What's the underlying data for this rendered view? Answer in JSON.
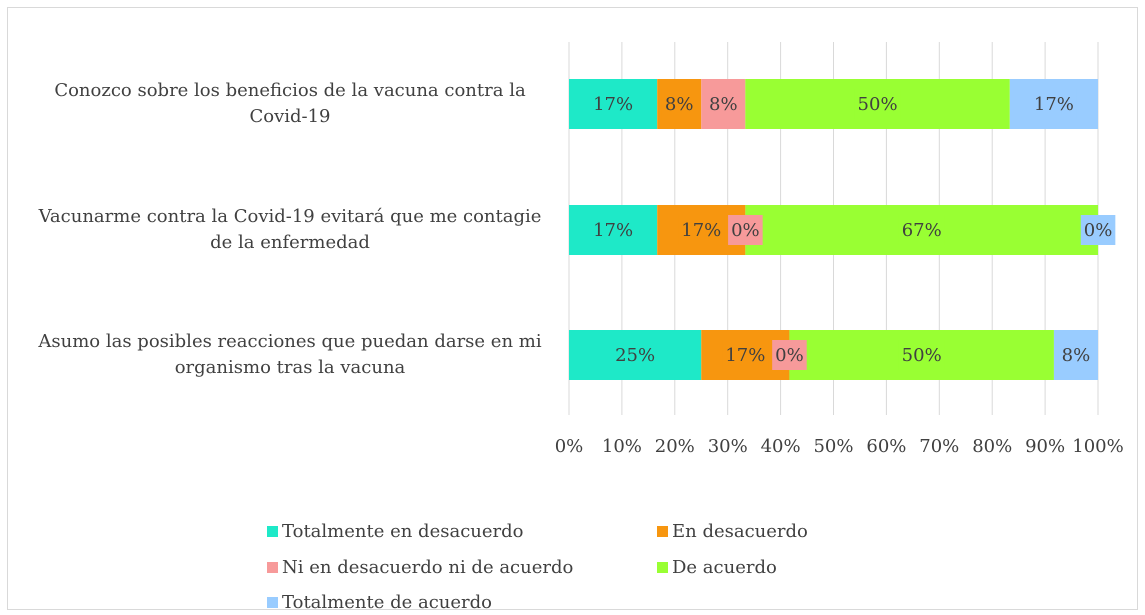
{
  "chart_data": {
    "type": "stacked-bar-horizontal",
    "categories": [
      "Conozco sobre los beneficios de la vacuna contra la Covid-19",
      "Vacunarme contra la Covid-19 evitará que me contagie de la enfermedad",
      "Asumo las posibles reacciones que puedan darse en mi organismo tras la vacuna"
    ],
    "series": [
      {
        "name": "Totalmente en desacuerdo",
        "color": "#1ee9c8",
        "values": [
          16.67,
          16.67,
          25
        ],
        "value_labels": [
          "17%",
          "17%",
          "25%"
        ]
      },
      {
        "name": "En desacuerdo",
        "color": "#f7960f",
        "values": [
          8.33,
          16.67,
          16.67
        ],
        "value_labels": [
          "8%",
          "17%",
          "17%"
        ]
      },
      {
        "name": "Ni en desacuerdo ni de acuerdo",
        "color": "#f79a9a",
        "values": [
          8.33,
          0,
          0
        ],
        "value_labels": [
          "8%",
          "0%",
          "0%"
        ]
      },
      {
        "name": "De acuerdo",
        "color": "#99ff33",
        "values": [
          50,
          66.67,
          50
        ],
        "value_labels": [
          "50%",
          "67%",
          "50%"
        ]
      },
      {
        "name": "Totalmente de acuerdo",
        "color": "#99ccff",
        "values": [
          16.67,
          0,
          8.33
        ],
        "value_labels": [
          "17%",
          "0%",
          "8%"
        ]
      }
    ],
    "xlim": [
      0,
      100
    ],
    "xticks": [
      {
        "value": 0,
        "label": "0%"
      },
      {
        "value": 10,
        "label": "10%"
      },
      {
        "value": 20,
        "label": "20%"
      },
      {
        "value": 30,
        "label": "30%"
      },
      {
        "value": 40,
        "label": "40%"
      },
      {
        "value": 50,
        "label": "50%"
      },
      {
        "value": 60,
        "label": "60%"
      },
      {
        "value": 70,
        "label": "70%"
      },
      {
        "value": 80,
        "label": "80%"
      },
      {
        "value": 90,
        "label": "90%"
      },
      {
        "value": 100,
        "label": "100%"
      }
    ],
    "grid": true,
    "legend": "bottom"
  }
}
